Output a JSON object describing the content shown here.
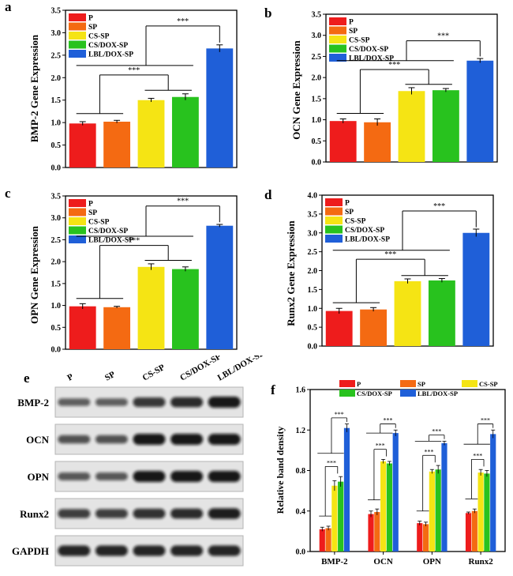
{
  "colors": {
    "P": "#ee1c1c",
    "SP": "#f46a12",
    "CS-SP": "#f5e414",
    "CS/DOX-SP": "#28c21e",
    "LBL/DOX-SP": "#1f5fd8"
  },
  "significance": "***",
  "chart_data": [
    {
      "id": "a",
      "letter": "a",
      "type": "bar",
      "ylabel": "BMP-2 Gene Expression",
      "ylim": [
        0,
        3.5
      ],
      "yticks": [
        "0.0",
        "0.5",
        "1.0",
        "1.5",
        "2.0",
        "2.5",
        "3.0",
        "3.5"
      ],
      "categories": [
        "P",
        "SP",
        "CS-SP",
        "CS/DOX-SP",
        "LBL/DOX-SP"
      ],
      "values": [
        0.98,
        1.02,
        1.5,
        1.57,
        2.65
      ],
      "errors": [
        0.04,
        0.03,
        0.04,
        0.07,
        0.08
      ],
      "legend": "top-left"
    },
    {
      "id": "b",
      "letter": "b",
      "type": "bar",
      "ylabel": "OCN Gene Expression",
      "ylim": [
        0,
        3.5
      ],
      "yticks": [
        "0.0",
        "0.5",
        "1.0",
        "1.5",
        "2.0",
        "2.5",
        "3.0",
        "3.5"
      ],
      "categories": [
        "P",
        "SP",
        "CS-SP",
        "CS/DOX-SP",
        "LBL/DOX-SP"
      ],
      "values": [
        0.97,
        0.94,
        1.68,
        1.7,
        2.4
      ],
      "errors": [
        0.05,
        0.08,
        0.08,
        0.04,
        0.05
      ],
      "legend": "top-left"
    },
    {
      "id": "c",
      "letter": "c",
      "type": "bar",
      "ylabel": "OPN Gene Expression",
      "ylim": [
        0,
        3.5
      ],
      "yticks": [
        "0.0",
        "0.5",
        "1.0",
        "1.5",
        "2.0",
        "2.5",
        "3.0",
        "3.5"
      ],
      "categories": [
        "P",
        "SP",
        "CS-SP",
        "CS/DOX-SP",
        "LBL/DOX-SP"
      ],
      "values": [
        0.98,
        0.96,
        1.88,
        1.83,
        2.82
      ],
      "errors": [
        0.06,
        0.02,
        0.07,
        0.05,
        0.03
      ],
      "legend": "top-left"
    },
    {
      "id": "d",
      "letter": "d",
      "type": "bar",
      "ylabel": "Runx2 Gene Expression",
      "ylim": [
        0,
        4.0
      ],
      "yticks": [
        "0.0",
        "0.5",
        "1.0",
        "1.5",
        "2.0",
        "2.5",
        "3.0",
        "3.5",
        "4.0"
      ],
      "categories": [
        "P",
        "SP",
        "CS-SP",
        "CS/DOX-SP",
        "LBL/DOX-SP"
      ],
      "values": [
        0.93,
        0.97,
        1.72,
        1.74,
        3.0
      ],
      "errors": [
        0.07,
        0.05,
        0.06,
        0.05,
        0.1
      ],
      "legend": "top-left"
    },
    {
      "id": "f",
      "letter": "f",
      "type": "bar",
      "ylabel": "Relative band density",
      "ylim": [
        0,
        1.6
      ],
      "yticks": [
        "0.0",
        "0.4",
        "0.8",
        "1.2",
        "1.6"
      ],
      "categories": [
        "BMP-2",
        "OCN",
        "OPN",
        "Runx2"
      ],
      "legend": "top",
      "series": [
        {
          "name": "P",
          "values": [
            0.22,
            0.37,
            0.28,
            0.38
          ],
          "errors": [
            0.02,
            0.03,
            0.02,
            0.01
          ]
        },
        {
          "name": "SP",
          "values": [
            0.23,
            0.39,
            0.27,
            0.4
          ],
          "errors": [
            0.02,
            0.03,
            0.02,
            0.02
          ]
        },
        {
          "name": "CS-SP",
          "values": [
            0.65,
            0.89,
            0.79,
            0.78
          ],
          "errors": [
            0.05,
            0.02,
            0.02,
            0.03
          ]
        },
        {
          "name": "CS/DOX-SP",
          "values": [
            0.69,
            0.87,
            0.81,
            0.77
          ],
          "errors": [
            0.05,
            0.02,
            0.04,
            0.03
          ]
        },
        {
          "name": "LBL/DOX-SP",
          "values": [
            1.22,
            1.17,
            1.07,
            1.16
          ],
          "errors": [
            0.04,
            0.03,
            0.02,
            0.04
          ]
        }
      ]
    }
  ],
  "blot": {
    "letter": "e",
    "lanes": [
      "P",
      "SP",
      "CS-SP",
      "CS/DOX-SP",
      "LBL/DOX-SP"
    ],
    "rows": [
      {
        "label": "BMP-2",
        "intensity": [
          0.45,
          0.45,
          0.75,
          0.85,
          1.0
        ]
      },
      {
        "label": "OCN",
        "intensity": [
          0.55,
          0.55,
          1.0,
          1.0,
          1.0
        ]
      },
      {
        "label": "OPN",
        "intensity": [
          0.5,
          0.5,
          1.0,
          1.0,
          1.0
        ]
      },
      {
        "label": "Runx2",
        "intensity": [
          0.7,
          0.7,
          0.8,
          0.85,
          0.95
        ]
      },
      {
        "label": "GAPDH",
        "intensity": [
          0.9,
          0.9,
          0.9,
          0.9,
          0.9
        ]
      }
    ]
  }
}
